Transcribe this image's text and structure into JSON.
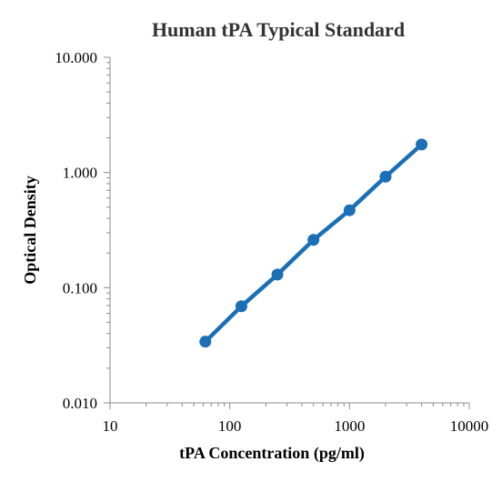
{
  "chart_data": {
    "type": "line",
    "title": "Human tPA Typical Standard",
    "xlabel": "tPA Concentration (pg/ml)",
    "ylabel": "Optical Density",
    "x_scale": "log",
    "y_scale": "log",
    "xlim": [
      10,
      10000
    ],
    "ylim": [
      0.01,
      10
    ],
    "x_ticks": [
      "10",
      "100",
      "1000",
      "10000"
    ],
    "y_ticks": [
      "0.010",
      "0.100",
      "1.000",
      "10.000"
    ],
    "grid": false,
    "legend": "none",
    "color": "#1a6fb5",
    "series": [
      {
        "x": [
          62.5,
          125,
          250,
          500,
          1000,
          2000,
          4000
        ],
        "values": [
          0.034,
          0.069,
          0.13,
          0.26,
          0.47,
          0.92,
          1.75
        ]
      }
    ]
  }
}
